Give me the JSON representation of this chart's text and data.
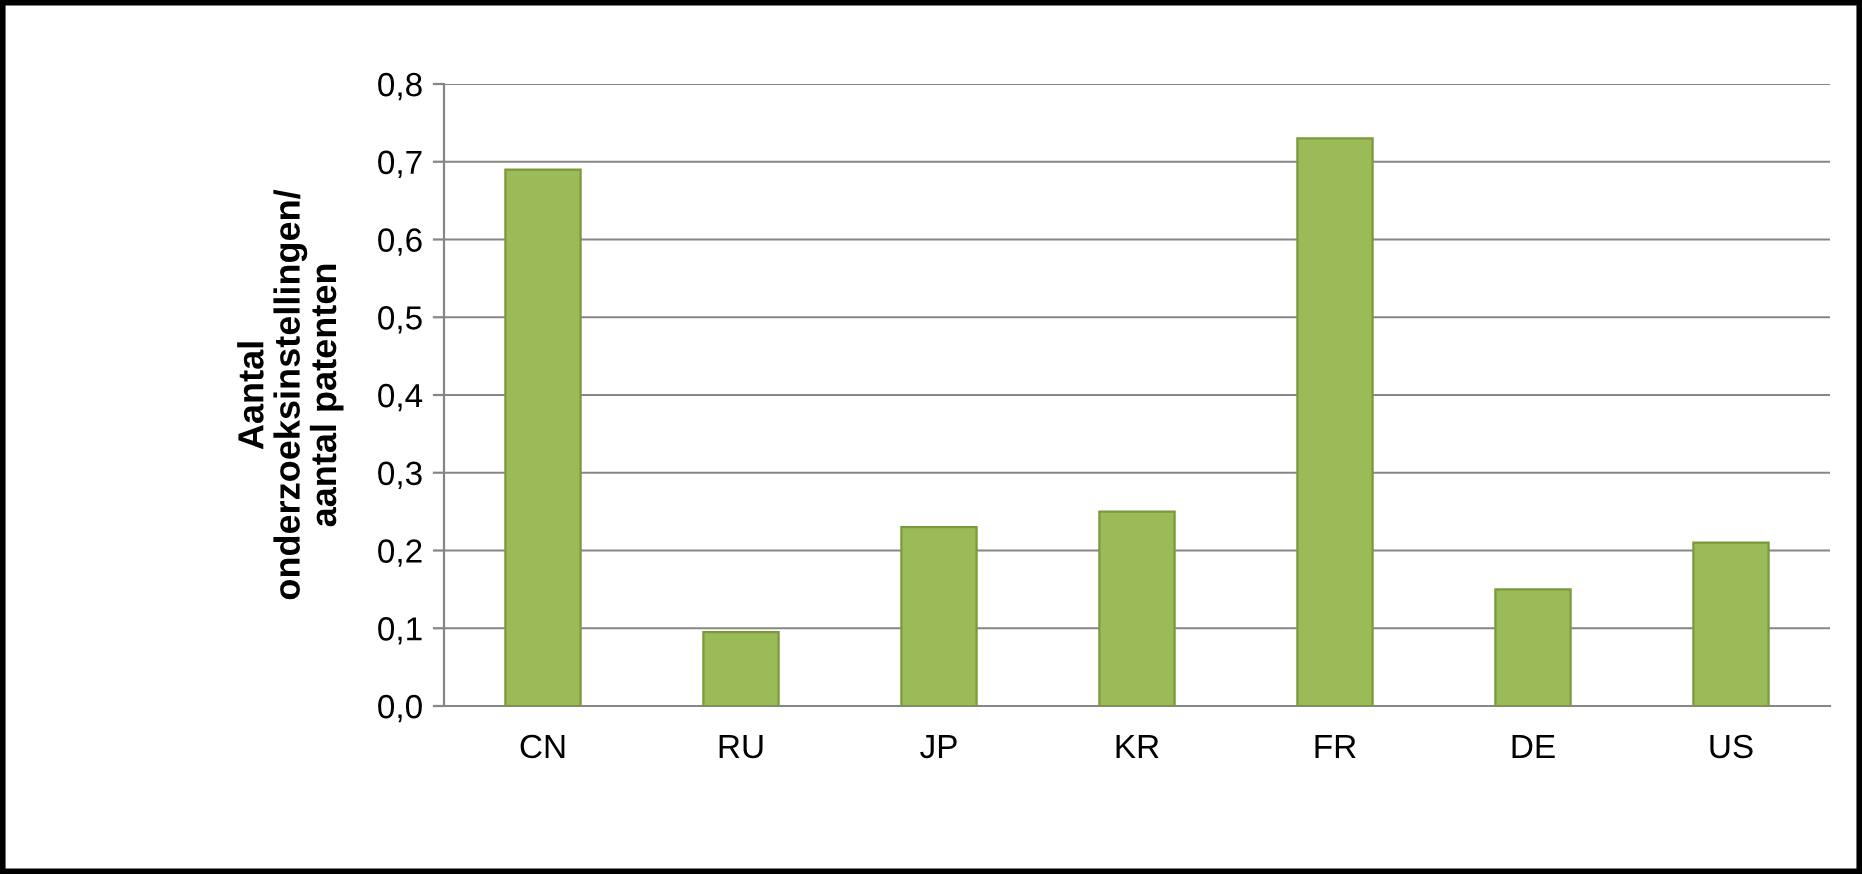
{
  "chart_data": {
    "type": "bar",
    "ylabel": "Aantal\nonderzoeksinstellingen/\naantal patenten",
    "categories": [
      "CN",
      "RU",
      "JP",
      "KR",
      "FR",
      "DE",
      "US"
    ],
    "values": [
      0.69,
      0.095,
      0.23,
      0.25,
      0.73,
      0.15,
      0.21
    ],
    "color": "#9bbb59",
    "ylim": [
      0,
      0.8
    ],
    "yticks": [
      {
        "value": 0,
        "label": "0,0"
      },
      {
        "value": 0.1,
        "label": "0,1"
      },
      {
        "value": 0.2,
        "label": "0,2"
      },
      {
        "value": 0.3,
        "label": "0,3"
      },
      {
        "value": 0.4,
        "label": "0,4"
      },
      {
        "value": 0.5,
        "label": "0,5"
      },
      {
        "value": 0.6,
        "label": "0,6"
      },
      {
        "value": 0.7,
        "label": "0,7"
      },
      {
        "value": 0.8,
        "label": "0,8"
      }
    ],
    "grid": "y",
    "legend": false
  }
}
